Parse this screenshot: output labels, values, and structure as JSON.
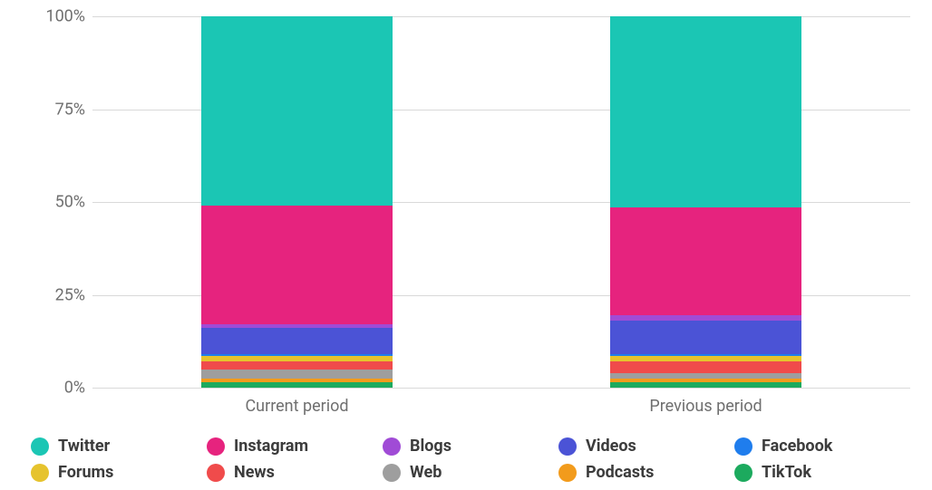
{
  "chart": {
    "type": "stacked-bar-100pct",
    "background_color": "#ffffff",
    "grid_color": "#d9d9d9",
    "axis_label_color": "#6f6f6f",
    "axis_label_fontsize": 18,
    "legend_label_color": "#3c3c3c",
    "legend_label_fontsize": 18,
    "legend_label_fontweight": 700,
    "ylim": [
      0,
      100
    ],
    "ytick_step": 25,
    "yticks": [
      "0%",
      "25%",
      "50%",
      "75%",
      "100%"
    ],
    "bar_width_pct": 47,
    "categories": [
      "Current period",
      "Previous period"
    ],
    "series": [
      {
        "name": "Twitter",
        "color": "#1bc6b4"
      },
      {
        "name": "Instagram",
        "color": "#e6237e"
      },
      {
        "name": "Blogs",
        "color": "#a04bd6"
      },
      {
        "name": "Videos",
        "color": "#4b53d6"
      },
      {
        "name": "Facebook",
        "color": "#1f7ded"
      },
      {
        "name": "Forums",
        "color": "#e6c32d"
      },
      {
        "name": "News",
        "color": "#f04b4b"
      },
      {
        "name": "Web",
        "color": "#9e9e9e"
      },
      {
        "name": "Podcasts",
        "color": "#f29b1c"
      },
      {
        "name": "TikTok",
        "color": "#1caa5e"
      }
    ],
    "stacks": {
      "Current period": {
        "Twitter": 51.0,
        "Instagram": 32.0,
        "Blogs": 1.0,
        "Videos": 7.0,
        "Facebook": 0.5,
        "Forums": 1.5,
        "News": 2.0,
        "Web": 2.5,
        "Podcasts": 1.0,
        "TikTok": 1.5
      },
      "Previous period": {
        "Twitter": 51.5,
        "Instagram": 29.0,
        "Blogs": 1.5,
        "Videos": 9.0,
        "Facebook": 0.5,
        "Forums": 1.5,
        "News": 3.0,
        "Web": 1.5,
        "Podcasts": 1.0,
        "TikTok": 1.5
      }
    }
  }
}
